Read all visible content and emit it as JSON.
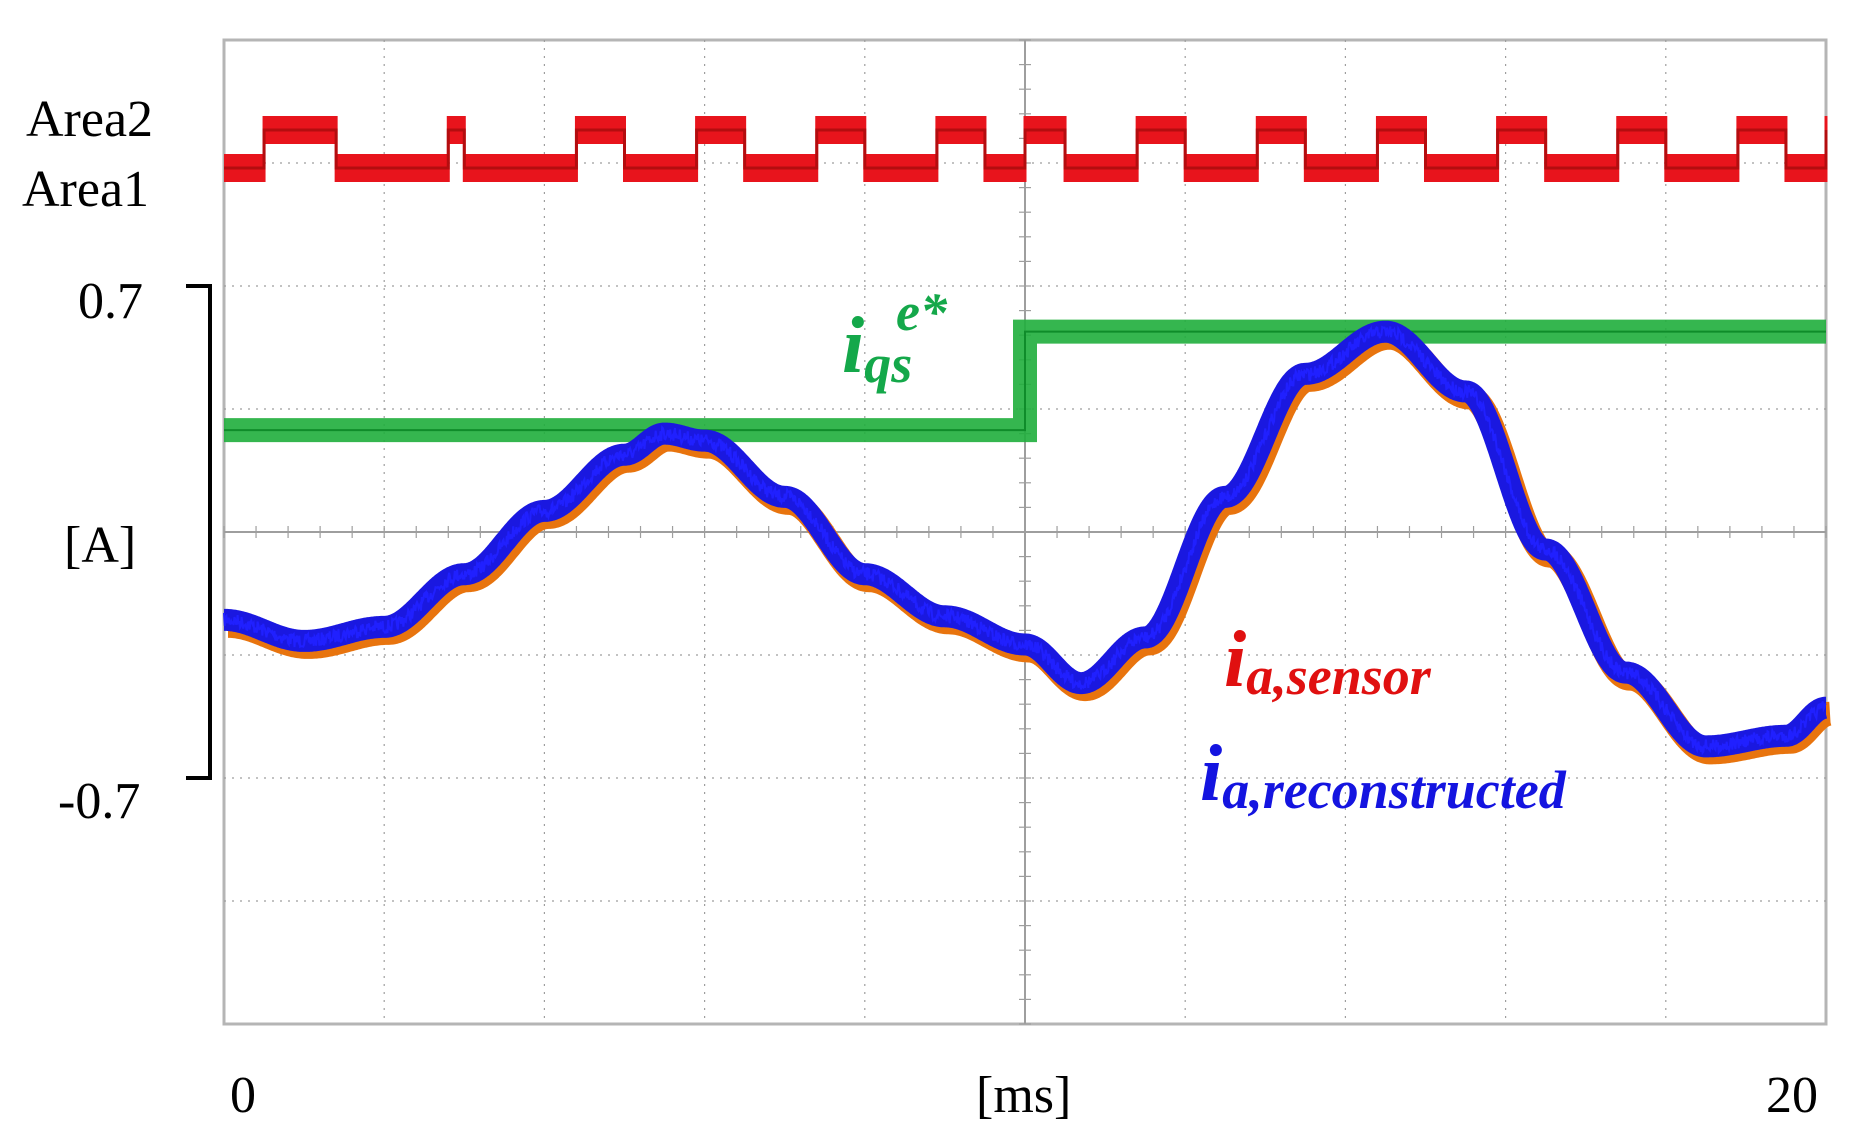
{
  "colors": {
    "background": "#ffffff",
    "grid": "#9e9e9e",
    "frame": "#b5b5b5",
    "area_signal": "#e8141c",
    "area_signal_dark": "#9e0a0a",
    "iqs_ref": "#1fae3c",
    "ia_sensor": "#e8740e",
    "ia_reconstructed": "#1a18e0",
    "label_sensor": "#e01010",
    "label_reconstructed": "#1414e0",
    "label_iqs": "#14a84a"
  },
  "axes": {
    "x_start_label": "0",
    "x_unit_label": "[ms]",
    "x_end_label": "20",
    "y_top_label": "0.7",
    "y_unit_label": "[A]",
    "y_bottom_label": "-0.7",
    "area2_label": "Area2",
    "area1_label": "Area1"
  },
  "annotations": {
    "iqs": {
      "base": "i",
      "sub": "qs",
      "sup": "e*"
    },
    "sensor": {
      "base": "i",
      "sub": "a,sensor"
    },
    "reconstructed": {
      "base": "i",
      "sub": "a,reconstructed"
    }
  },
  "chart_data": {
    "type": "line",
    "x_unit": "ms",
    "xlim": [
      0,
      20
    ],
    "ylim": [
      -1.4,
      1.4
    ],
    "grid": true,
    "scale_bar": [
      -0.7,
      0.7
    ],
    "series": [
      {
        "name": "i_qs^e*",
        "x": [
          0,
          10,
          10,
          20
        ],
        "y": [
          0.29,
          0.29,
          0.57,
          0.57
        ]
      },
      {
        "name": "i_a,sensor",
        "x": [
          0,
          1,
          2,
          3,
          4,
          5,
          5.5,
          6,
          7,
          8,
          9,
          10,
          10.7,
          11.5,
          12.5,
          13.5,
          14.5,
          15.5,
          16.5,
          17.5,
          18.5,
          19.5,
          20
        ],
        "y": [
          -0.25,
          -0.31,
          -0.27,
          -0.12,
          0.06,
          0.22,
          0.28,
          0.26,
          0.1,
          -0.12,
          -0.24,
          -0.32,
          -0.43,
          -0.3,
          0.1,
          0.45,
          0.57,
          0.4,
          -0.05,
          -0.4,
          -0.61,
          -0.58,
          -0.5
        ]
      },
      {
        "name": "i_a,reconstructed",
        "x": [
          0,
          1,
          2,
          3,
          4,
          5,
          5.5,
          6,
          7,
          8,
          9,
          10,
          10.7,
          11.5,
          12.5,
          13.5,
          14.5,
          15.5,
          16.5,
          17.5,
          18.5,
          19.5,
          20
        ],
        "y": [
          -0.25,
          -0.31,
          -0.27,
          -0.12,
          0.06,
          0.22,
          0.28,
          0.26,
          0.1,
          -0.12,
          -0.24,
          -0.32,
          -0.43,
          -0.3,
          0.1,
          0.45,
          0.57,
          0.4,
          -0.05,
          -0.4,
          -0.61,
          -0.58,
          -0.5
        ]
      },
      {
        "name": "Area",
        "levels": [
          "Area1",
          "Area2"
        ],
        "x": [
          0,
          0.5,
          1.4,
          2.8,
          3.0,
          4.4,
          5.0,
          5.9,
          6.5,
          7.4,
          8.0,
          8.9,
          9.5,
          10.0,
          10.5,
          11.4,
          12.0,
          12.9,
          13.5,
          14.4,
          15.0,
          15.9,
          16.5,
          17.4,
          18.0,
          18.9,
          19.5,
          20.0
        ],
        "y": [
          1,
          2,
          1,
          2,
          1,
          2,
          1,
          2,
          1,
          2,
          1,
          2,
          1,
          2,
          1,
          2,
          1,
          2,
          1,
          2,
          1,
          2,
          1,
          2,
          1,
          2,
          1,
          2
        ]
      }
    ]
  }
}
